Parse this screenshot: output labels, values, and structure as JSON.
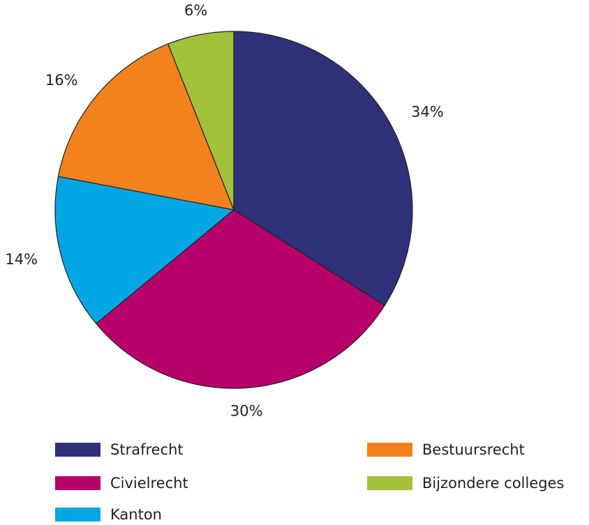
{
  "chart_data": {
    "type": "pie",
    "title": "",
    "start_angle_deg": 0,
    "direction": "clockwise",
    "legend_placement": "bottom",
    "slices": [
      {
        "name": "Strafrecht",
        "value": 34,
        "label": "34%",
        "color": "#2e3079"
      },
      {
        "name": "Civielrecht",
        "value": 30,
        "label": "30%",
        "color": "#b8006b"
      },
      {
        "name": "Kanton",
        "value": 14,
        "label": "14%",
        "color": "#00a5e3"
      },
      {
        "name": "Bestuursrecht",
        "value": 16,
        "label": "16%",
        "color": "#f3821e"
      },
      {
        "name": "Bijzondere colleges",
        "value": 6,
        "label": "6%",
        "color": "#a3c13a"
      }
    ]
  }
}
